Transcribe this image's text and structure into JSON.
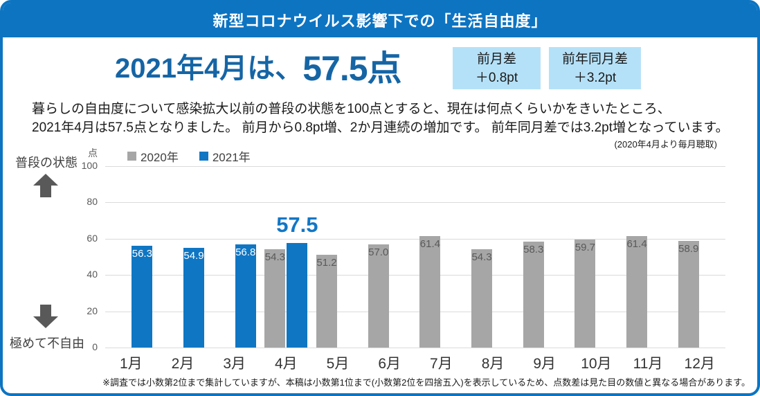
{
  "header": {
    "title": "新型コロナウイルス影響下での「生活自由度」"
  },
  "headline": {
    "prefix": "2021年4月は、",
    "score": "57.5点",
    "badges": [
      {
        "label": "前月差",
        "value": "＋0.8pt"
      },
      {
        "label": "前年同月差",
        "value": "＋3.2pt"
      }
    ]
  },
  "description": {
    "lines": [
      "暮らしの自由度について感染拡大以前の普段の状態を100点とすると、現在は何点くらいかをきいたところ、",
      "2021年4月は57.5点となりました。 前月から0.8pt増、2か月連続の増加です。 前年同月差では3.2pt増となっています。"
    ],
    "survey_note": "(2020年4月より毎月聴取)"
  },
  "axis": {
    "top_label": "普段の状態",
    "bottom_label": "極めて不自由",
    "unit": "点"
  },
  "colors": {
    "accent_blue": "#0d74c2",
    "bar_blue": "#0f76c3",
    "bar_gray": "#a6a6a6",
    "gray_label_text": "#595959",
    "badge_bg": "#b5e1f8",
    "headline_blue": "#1565a5"
  },
  "chart_data": {
    "type": "bar",
    "title": "新型コロナウイルス影響下での「生活自由度」",
    "categories": [
      "1月",
      "2月",
      "3月",
      "4月",
      "5月",
      "6月",
      "7月",
      "8月",
      "9月",
      "10月",
      "11月",
      "12月"
    ],
    "series": [
      {
        "name": "2020年",
        "color": "#a6a6a6",
        "label_color": "#595959",
        "values": [
          null,
          null,
          null,
          54.3,
          51.2,
          57.0,
          61.4,
          54.3,
          58.3,
          59.7,
          61.4,
          58.9
        ]
      },
      {
        "name": "2021年",
        "color": "#0f76c3",
        "label_color": "#ffffff",
        "values": [
          56.3,
          54.9,
          56.8,
          57.5,
          null,
          null,
          null,
          null,
          null,
          null,
          null,
          null
        ]
      }
    ],
    "ylabel": "点",
    "ylim": [
      0,
      100
    ],
    "yticks": [
      0,
      20,
      40,
      60,
      80,
      100
    ],
    "grid": true,
    "legend_position": "top",
    "highlight": {
      "series": "2021年",
      "category": "4月",
      "label": "57.5"
    }
  },
  "footer": {
    "note": "※調査では小数第2位まで集計していますが、本稿は小数第1位まで(小数第2位を四捨五入)を表示しているため、点数差は見た目の数値と異なる場合があります。"
  }
}
